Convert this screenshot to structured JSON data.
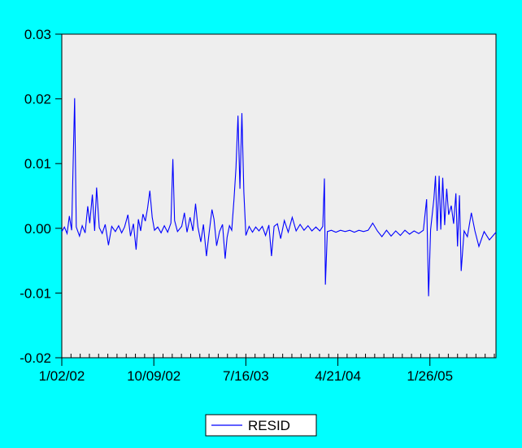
{
  "chart_data": {
    "type": "line",
    "title": "",
    "xlabel": "",
    "ylabel": "",
    "ylim": [
      -0.02,
      0.03
    ],
    "y_ticks": [
      {
        "value": 0.03,
        "label": "0.03"
      },
      {
        "value": 0.02,
        "label": "0.02"
      },
      {
        "value": 0.01,
        "label": "0.01"
      },
      {
        "value": 0.0,
        "label": "0.00"
      },
      {
        "value": -0.01,
        "label": "-0.01"
      },
      {
        "value": -0.02,
        "label": "-0.02"
      }
    ],
    "x_ticks": [
      {
        "date": "2002-01-02",
        "label": "1/02/02"
      },
      {
        "date": "2002-10-09",
        "label": "10/09/02"
      },
      {
        "date": "2003-07-16",
        "label": "7/16/03"
      },
      {
        "date": "2004-04-21",
        "label": "4/21/04"
      },
      {
        "date": "2005-01-26",
        "label": "1/26/05"
      }
    ],
    "xlim": [
      "2002-01-02",
      "2005-08-15"
    ],
    "legend": {
      "placement": "bottom-center"
    },
    "colors": {
      "background": "#00ffff",
      "plot_area": "#eeeeee",
      "series": "#0000ff"
    },
    "series": [
      {
        "name": "RESID",
        "points": [
          [
            "2002-01-02",
            -0.0005
          ],
          [
            "2002-01-10",
            0.0002
          ],
          [
            "2002-01-18",
            -0.0008
          ],
          [
            "2002-01-25",
            0.0019
          ],
          [
            "2002-02-01",
            -0.0003
          ],
          [
            "2002-02-10",
            0.0201
          ],
          [
            "2002-02-15",
            0.0002
          ],
          [
            "2002-02-25",
            -0.0012
          ],
          [
            "2002-03-05",
            0.0004
          ],
          [
            "2002-03-14",
            -0.0007
          ],
          [
            "2002-03-22",
            0.0034
          ],
          [
            "2002-03-28",
            0.0008
          ],
          [
            "2002-04-05",
            0.0052
          ],
          [
            "2002-04-12",
            -0.0004
          ],
          [
            "2002-04-18",
            0.0063
          ],
          [
            "2002-04-26",
            0.0001
          ],
          [
            "2002-05-05",
            -0.0008
          ],
          [
            "2002-05-14",
            0.0006
          ],
          [
            "2002-05-24",
            -0.0026
          ],
          [
            "2002-06-03",
            0.0003
          ],
          [
            "2002-06-14",
            -0.0005
          ],
          [
            "2002-06-24",
            0.0004
          ],
          [
            "2002-07-03",
            -0.0007
          ],
          [
            "2002-07-12",
            0.0002
          ],
          [
            "2002-07-22",
            0.0021
          ],
          [
            "2002-07-30",
            -0.0012
          ],
          [
            "2002-08-08",
            0.0007
          ],
          [
            "2002-08-16",
            -0.0033
          ],
          [
            "2002-08-23",
            0.0014
          ],
          [
            "2002-08-30",
            -0.0004
          ],
          [
            "2002-09-06",
            0.0022
          ],
          [
            "2002-09-13",
            0.0011
          ],
          [
            "2002-09-20",
            0.0031
          ],
          [
            "2002-09-27",
            0.0058
          ],
          [
            "2002-10-04",
            0.0017
          ],
          [
            "2002-10-11",
            -0.0003
          ],
          [
            "2002-10-21",
            0.0002
          ],
          [
            "2002-10-31",
            -0.0007
          ],
          [
            "2002-11-10",
            0.0004
          ],
          [
            "2002-11-20",
            -0.0006
          ],
          [
            "2002-11-30",
            0.0008
          ],
          [
            "2002-12-06",
            0.0107
          ],
          [
            "2002-12-11",
            0.0012
          ],
          [
            "2002-12-20",
            -0.0005
          ],
          [
            "2003-01-02",
            0.0003
          ],
          [
            "2003-01-10",
            0.0024
          ],
          [
            "2003-01-18",
            -0.0006
          ],
          [
            "2003-01-27",
            0.0017
          ],
          [
            "2003-02-05",
            -0.0004
          ],
          [
            "2003-02-13",
            0.0038
          ],
          [
            "2003-02-20",
            0.0002
          ],
          [
            "2003-03-01",
            -0.0021
          ],
          [
            "2003-03-09",
            0.0006
          ],
          [
            "2003-03-18",
            -0.0043
          ],
          [
            "2003-03-26",
            -0.0008
          ],
          [
            "2003-04-04",
            0.0029
          ],
          [
            "2003-04-10",
            0.0014
          ],
          [
            "2003-04-18",
            -0.0027
          ],
          [
            "2003-04-27",
            -0.0005
          ],
          [
            "2003-05-06",
            0.0006
          ],
          [
            "2003-05-14",
            -0.0047
          ],
          [
            "2003-05-20",
            -0.0014
          ],
          [
            "2003-05-27",
            0.0004
          ],
          [
            "2003-06-03",
            -0.0003
          ],
          [
            "2003-06-10",
            0.0045
          ],
          [
            "2003-06-16",
            0.0093
          ],
          [
            "2003-06-22",
            0.0174
          ],
          [
            "2003-06-28",
            0.0061
          ],
          [
            "2003-07-04",
            0.0178
          ],
          [
            "2003-07-10",
            0.0056
          ],
          [
            "2003-07-16",
            -0.0011
          ],
          [
            "2003-07-26",
            0.0003
          ],
          [
            "2003-08-05",
            -0.0006
          ],
          [
            "2003-08-15",
            0.0002
          ],
          [
            "2003-08-25",
            -0.0004
          ],
          [
            "2003-09-04",
            0.0003
          ],
          [
            "2003-09-14",
            -0.0011
          ],
          [
            "2003-09-24",
            0.0005
          ],
          [
            "2003-10-02",
            -0.0043
          ],
          [
            "2003-10-10",
            0.0003
          ],
          [
            "2003-10-20",
            0.0007
          ],
          [
            "2003-10-30",
            -0.0016
          ],
          [
            "2003-11-10",
            0.0012
          ],
          [
            "2003-11-22",
            -0.0006
          ],
          [
            "2003-12-04",
            0.0017
          ],
          [
            "2003-12-16",
            -0.0004
          ],
          [
            "2003-12-28",
            0.0006
          ],
          [
            "2004-01-09",
            -0.0003
          ],
          [
            "2004-01-21",
            0.0004
          ],
          [
            "2004-02-02",
            -0.0004
          ],
          [
            "2004-02-14",
            0.0002
          ],
          [
            "2004-02-26",
            -0.0004
          ],
          [
            "2004-03-06",
            0.0003
          ],
          [
            "2004-03-11",
            0.0077
          ],
          [
            "2004-03-14",
            -0.0087
          ],
          [
            "2004-03-20",
            -0.0005
          ],
          [
            "2004-04-01",
            -0.0003
          ],
          [
            "2004-04-15",
            -0.0006
          ],
          [
            "2004-04-29",
            -0.0003
          ],
          [
            "2004-05-13",
            -0.0005
          ],
          [
            "2004-05-27",
            -0.0003
          ],
          [
            "2004-06-10",
            -0.0006
          ],
          [
            "2004-06-24",
            -0.0003
          ],
          [
            "2004-07-08",
            -0.0005
          ],
          [
            "2004-07-22",
            -0.0003
          ],
          [
            "2004-08-05",
            0.0008
          ],
          [
            "2004-08-19",
            -0.0004
          ],
          [
            "2004-09-02",
            -0.0013
          ],
          [
            "2004-09-16",
            -0.0003
          ],
          [
            "2004-09-30",
            -0.0012
          ],
          [
            "2004-10-14",
            -0.0004
          ],
          [
            "2004-10-28",
            -0.0011
          ],
          [
            "2004-11-11",
            -0.0003
          ],
          [
            "2004-11-25",
            -0.0009
          ],
          [
            "2004-12-09",
            -0.0004
          ],
          [
            "2004-12-23",
            -0.0008
          ],
          [
            "2005-01-06",
            -0.0003
          ],
          [
            "2005-01-16",
            0.0045
          ],
          [
            "2005-01-22",
            -0.0105
          ],
          [
            "2005-01-28",
            -0.0002
          ],
          [
            "2005-02-07",
            0.0045
          ],
          [
            "2005-02-12",
            0.0081
          ],
          [
            "2005-02-17",
            -0.0004
          ],
          [
            "2005-02-23",
            0.0081
          ],
          [
            "2005-02-28",
            -0.0002
          ],
          [
            "2005-03-06",
            0.0078
          ],
          [
            "2005-03-12",
            0.0005
          ],
          [
            "2005-03-18",
            0.0061
          ],
          [
            "2005-03-24",
            0.0021
          ],
          [
            "2005-04-01",
            0.0035
          ],
          [
            "2005-04-08",
            0.0007
          ],
          [
            "2005-04-15",
            0.0054
          ],
          [
            "2005-04-20",
            -0.0028
          ],
          [
            "2005-04-26",
            0.0051
          ],
          [
            "2005-05-01",
            -0.0066
          ],
          [
            "2005-05-10",
            -0.0004
          ],
          [
            "2005-05-20",
            -0.0013
          ],
          [
            "2005-06-01",
            0.0024
          ],
          [
            "2005-06-12",
            -0.0004
          ],
          [
            "2005-06-24",
            -0.0028
          ],
          [
            "2005-07-10",
            -0.0005
          ],
          [
            "2005-07-26",
            -0.0018
          ],
          [
            "2005-08-15",
            -0.0006
          ]
        ]
      }
    ]
  }
}
